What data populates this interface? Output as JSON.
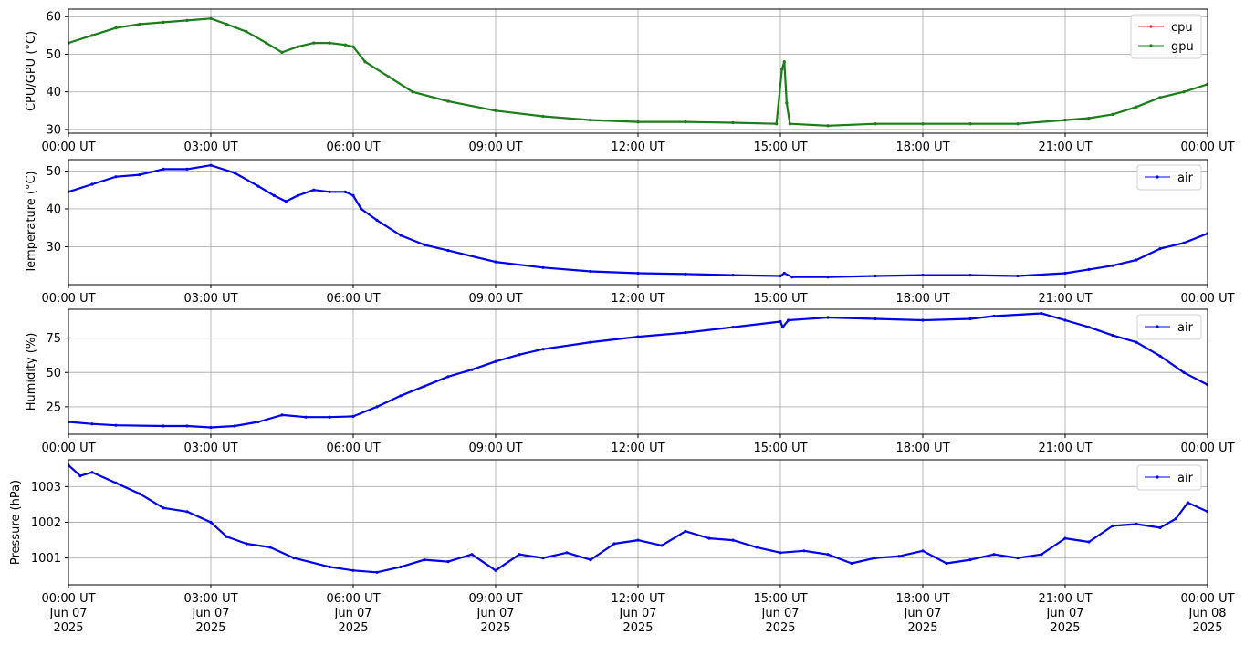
{
  "chart_data": [
    {
      "type": "line",
      "ylabel": "CPU/GPU (°C)",
      "xlim": [
        "00:00",
        "24:00"
      ],
      "ylim": [
        29,
        62
      ],
      "yticks": [
        30,
        40,
        50,
        60
      ],
      "grid": true,
      "legend": "top-right",
      "xtick_labels": [
        "00:00 UT",
        "03:00 UT",
        "06:00 UT",
        "09:00 UT",
        "12:00 UT",
        "15:00 UT",
        "18:00 UT",
        "21:00 UT",
        "00:00 UT"
      ],
      "series": [
        {
          "name": "cpu",
          "color": "#d62728",
          "points": [
            [
              "00:00",
              53
            ],
            [
              "00:30",
              55
            ],
            [
              "01:00",
              57
            ],
            [
              "01:30",
              58
            ],
            [
              "02:00",
              58.5
            ],
            [
              "02:30",
              59
            ],
            [
              "03:00",
              59.5
            ],
            [
              "03:20",
              58
            ],
            [
              "03:45",
              56
            ],
            [
              "04:10",
              53
            ],
            [
              "04:30",
              50.5
            ],
            [
              "04:50",
              52
            ],
            [
              "05:10",
              53
            ],
            [
              "05:30",
              53
            ],
            [
              "05:50",
              52.5
            ],
            [
              "06:00",
              52
            ],
            [
              "06:15",
              48
            ],
            [
              "06:45",
              44
            ],
            [
              "07:15",
              40
            ],
            [
              "08:00",
              37.5
            ],
            [
              "09:00",
              35
            ],
            [
              "10:00",
              33.5
            ],
            [
              "11:00",
              32.5
            ],
            [
              "12:00",
              32
            ],
            [
              "13:00",
              32
            ],
            [
              "14:00",
              31.8
            ],
            [
              "14:55",
              31.5
            ],
            [
              "15:02",
              46
            ],
            [
              "15:05",
              48
            ],
            [
              "15:08",
              37
            ],
            [
              "15:12",
              31.5
            ],
            [
              "16:00",
              31
            ],
            [
              "17:00",
              31.5
            ],
            [
              "18:00",
              31.5
            ],
            [
              "19:00",
              31.5
            ],
            [
              "20:00",
              31.5
            ],
            [
              "21:00",
              32.5
            ],
            [
              "21:30",
              33
            ],
            [
              "22:00",
              34
            ],
            [
              "22:30",
              36
            ],
            [
              "23:00",
              38.5
            ],
            [
              "23:30",
              40
            ],
            [
              "24:00",
              42
            ]
          ]
        },
        {
          "name": "gpu",
          "color": "#1a7f1a",
          "points": [
            [
              "00:00",
              53
            ],
            [
              "00:30",
              55
            ],
            [
              "01:00",
              57
            ],
            [
              "01:30",
              58
            ],
            [
              "02:00",
              58.5
            ],
            [
              "02:30",
              59
            ],
            [
              "03:00",
              59.5
            ],
            [
              "03:20",
              58
            ],
            [
              "03:45",
              56
            ],
            [
              "04:10",
              53
            ],
            [
              "04:30",
              50.5
            ],
            [
              "04:50",
              52
            ],
            [
              "05:10",
              53
            ],
            [
              "05:30",
              53
            ],
            [
              "05:50",
              52.5
            ],
            [
              "06:00",
              52
            ],
            [
              "06:15",
              48
            ],
            [
              "06:45",
              44
            ],
            [
              "07:15",
              40
            ],
            [
              "08:00",
              37.5
            ],
            [
              "09:00",
              35
            ],
            [
              "10:00",
              33.5
            ],
            [
              "11:00",
              32.5
            ],
            [
              "12:00",
              32
            ],
            [
              "13:00",
              32
            ],
            [
              "14:00",
              31.8
            ],
            [
              "14:55",
              31.5
            ],
            [
              "15:02",
              46
            ],
            [
              "15:05",
              48
            ],
            [
              "15:08",
              37
            ],
            [
              "15:12",
              31.5
            ],
            [
              "16:00",
              31
            ],
            [
              "17:00",
              31.5
            ],
            [
              "18:00",
              31.5
            ],
            [
              "19:00",
              31.5
            ],
            [
              "20:00",
              31.5
            ],
            [
              "21:00",
              32.5
            ],
            [
              "21:30",
              33
            ],
            [
              "22:00",
              34
            ],
            [
              "22:30",
              36
            ],
            [
              "23:00",
              38.5
            ],
            [
              "23:30",
              40
            ],
            [
              "24:00",
              42
            ]
          ]
        }
      ]
    },
    {
      "type": "line",
      "ylabel": "Temperature (°C)",
      "xlim": [
        "00:00",
        "24:00"
      ],
      "ylim": [
        20,
        53
      ],
      "yticks": [
        30,
        40,
        50
      ],
      "grid": true,
      "legend": "top-right",
      "xtick_labels": [
        "00:00 UT",
        "03:00 UT",
        "06:00 UT",
        "09:00 UT",
        "12:00 UT",
        "15:00 UT",
        "18:00 UT",
        "21:00 UT",
        "00:00 UT"
      ],
      "series": [
        {
          "name": "air",
          "color": "#0000ee",
          "points": [
            [
              "00:00",
              44.5
            ],
            [
              "00:30",
              46.5
            ],
            [
              "01:00",
              48.5
            ],
            [
              "01:30",
              49
            ],
            [
              "02:00",
              50.5
            ],
            [
              "02:30",
              50.5
            ],
            [
              "03:00",
              51.5
            ],
            [
              "03:30",
              49.5
            ],
            [
              "04:00",
              46
            ],
            [
              "04:20",
              43.5
            ],
            [
              "04:35",
              42
            ],
            [
              "04:50",
              43.5
            ],
            [
              "05:10",
              45
            ],
            [
              "05:30",
              44.5
            ],
            [
              "05:50",
              44.5
            ],
            [
              "06:00",
              43.5
            ],
            [
              "06:10",
              40
            ],
            [
              "06:30",
              37
            ],
            [
              "07:00",
              33
            ],
            [
              "07:30",
              30.5
            ],
            [
              "08:00",
              29
            ],
            [
              "09:00",
              26
            ],
            [
              "10:00",
              24.5
            ],
            [
              "11:00",
              23.5
            ],
            [
              "12:00",
              23
            ],
            [
              "13:00",
              22.8
            ],
            [
              "14:00",
              22.5
            ],
            [
              "15:00",
              22.3
            ],
            [
              "15:05",
              23
            ],
            [
              "15:15",
              22
            ],
            [
              "16:00",
              22
            ],
            [
              "17:00",
              22.3
            ],
            [
              "18:00",
              22.5
            ],
            [
              "19:00",
              22.5
            ],
            [
              "20:00",
              22.3
            ],
            [
              "21:00",
              23
            ],
            [
              "21:30",
              24
            ],
            [
              "22:00",
              25
            ],
            [
              "22:30",
              26.5
            ],
            [
              "23:00",
              29.5
            ],
            [
              "23:30",
              31
            ],
            [
              "24:00",
              33.5
            ]
          ]
        }
      ]
    },
    {
      "type": "line",
      "ylabel": "Humidity (%)",
      "xlim": [
        "00:00",
        "24:00"
      ],
      "ylim": [
        5,
        96
      ],
      "yticks": [
        25,
        50,
        75
      ],
      "grid": true,
      "legend": "top-right",
      "xtick_labels": [
        "00:00 UT",
        "03:00 UT",
        "06:00 UT",
        "09:00 UT",
        "12:00 UT",
        "15:00 UT",
        "18:00 UT",
        "21:00 UT",
        "00:00 UT"
      ],
      "series": [
        {
          "name": "air",
          "color": "#0000ee",
          "points": [
            [
              "00:00",
              14
            ],
            [
              "00:30",
              12.5
            ],
            [
              "01:00",
              11.5
            ],
            [
              "02:00",
              11
            ],
            [
              "02:30",
              11
            ],
            [
              "03:00",
              10
            ],
            [
              "03:30",
              11
            ],
            [
              "04:00",
              14
            ],
            [
              "04:30",
              19
            ],
            [
              "05:00",
              17.5
            ],
            [
              "05:30",
              17.5
            ],
            [
              "06:00",
              18
            ],
            [
              "06:30",
              25
            ],
            [
              "07:00",
              33
            ],
            [
              "07:30",
              40
            ],
            [
              "08:00",
              47
            ],
            [
              "08:30",
              52
            ],
            [
              "09:00",
              58
            ],
            [
              "09:30",
              63
            ],
            [
              "10:00",
              67
            ],
            [
              "11:00",
              72
            ],
            [
              "12:00",
              76
            ],
            [
              "13:00",
              79
            ],
            [
              "14:00",
              83
            ],
            [
              "15:00",
              87
            ],
            [
              "15:03",
              83
            ],
            [
              "15:10",
              88
            ],
            [
              "16:00",
              90
            ],
            [
              "17:00",
              89
            ],
            [
              "18:00",
              88
            ],
            [
              "19:00",
              89
            ],
            [
              "19:30",
              91
            ],
            [
              "20:30",
              93
            ],
            [
              "21:00",
              88
            ],
            [
              "21:30",
              83
            ],
            [
              "22:00",
              77
            ],
            [
              "22:30",
              72
            ],
            [
              "23:00",
              62
            ],
            [
              "23:30",
              50
            ],
            [
              "24:00",
              41
            ]
          ]
        }
      ]
    },
    {
      "type": "line",
      "ylabel": "Pressure (hPa)",
      "xlim": [
        "Jun 07 2025 00:00",
        "Jun 08 2025 00:00"
      ],
      "ylim": [
        1000.25,
        1003.75
      ],
      "yticks": [
        1001,
        1002,
        1003
      ],
      "grid": true,
      "legend": "top-right",
      "xtick_labels": [
        {
          "time": "00:00 UT",
          "date": "Jun 07",
          "year": "2025"
        },
        {
          "time": "03:00 UT",
          "date": "Jun 07",
          "year": "2025"
        },
        {
          "time": "06:00 UT",
          "date": "Jun 07",
          "year": "2025"
        },
        {
          "time": "09:00 UT",
          "date": "Jun 07",
          "year": "2025"
        },
        {
          "time": "12:00 UT",
          "date": "Jun 07",
          "year": "2025"
        },
        {
          "time": "15:00 UT",
          "date": "Jun 07",
          "year": "2025"
        },
        {
          "time": "18:00 UT",
          "date": "Jun 07",
          "year": "2025"
        },
        {
          "time": "21:00 UT",
          "date": "Jun 07",
          "year": "2025"
        },
        {
          "time": "00:00 UT",
          "date": "Jun 08",
          "year": "2025"
        }
      ],
      "series": [
        {
          "name": "air",
          "color": "#0000ee",
          "points": [
            [
              "00:00",
              1003.6
            ],
            [
              "00:15",
              1003.3
            ],
            [
              "00:30",
              1003.4
            ],
            [
              "01:00",
              1003.1
            ],
            [
              "01:30",
              1002.8
            ],
            [
              "02:00",
              1002.4
            ],
            [
              "02:30",
              1002.3
            ],
            [
              "03:00",
              1002
            ],
            [
              "03:20",
              1001.6
            ],
            [
              "03:45",
              1001.4
            ],
            [
              "04:15",
              1001.3
            ],
            [
              "04:45",
              1001
            ],
            [
              "05:30",
              1000.75
            ],
            [
              "06:00",
              1000.65
            ],
            [
              "06:30",
              1000.6
            ],
            [
              "07:00",
              1000.75
            ],
            [
              "07:30",
              1000.95
            ],
            [
              "08:00",
              1000.9
            ],
            [
              "08:30",
              1001.1
            ],
            [
              "09:00",
              1000.65
            ],
            [
              "09:30",
              1001.1
            ],
            [
              "10:00",
              1001
            ],
            [
              "10:30",
              1001.15
            ],
            [
              "11:00",
              1000.95
            ],
            [
              "11:30",
              1001.4
            ],
            [
              "12:00",
              1001.5
            ],
            [
              "12:30",
              1001.35
            ],
            [
              "13:00",
              1001.75
            ],
            [
              "13:30",
              1001.55
            ],
            [
              "14:00",
              1001.5
            ],
            [
              "14:30",
              1001.3
            ],
            [
              "15:00",
              1001.15
            ],
            [
              "15:30",
              1001.2
            ],
            [
              "16:00",
              1001.1
            ],
            [
              "16:30",
              1000.85
            ],
            [
              "17:00",
              1001
            ],
            [
              "17:30",
              1001.05
            ],
            [
              "18:00",
              1001.2
            ],
            [
              "18:30",
              1000.85
            ],
            [
              "19:00",
              1000.95
            ],
            [
              "19:30",
              1001.1
            ],
            [
              "20:00",
              1001
            ],
            [
              "20:30",
              1001.1
            ],
            [
              "21:00",
              1001.55
            ],
            [
              "21:30",
              1001.45
            ],
            [
              "22:00",
              1001.9
            ],
            [
              "22:30",
              1001.95
            ],
            [
              "23:00",
              1001.85
            ],
            [
              "23:20",
              1002.1
            ],
            [
              "23:35",
              1002.55
            ],
            [
              "24:00",
              1002.3
            ]
          ]
        }
      ]
    }
  ]
}
